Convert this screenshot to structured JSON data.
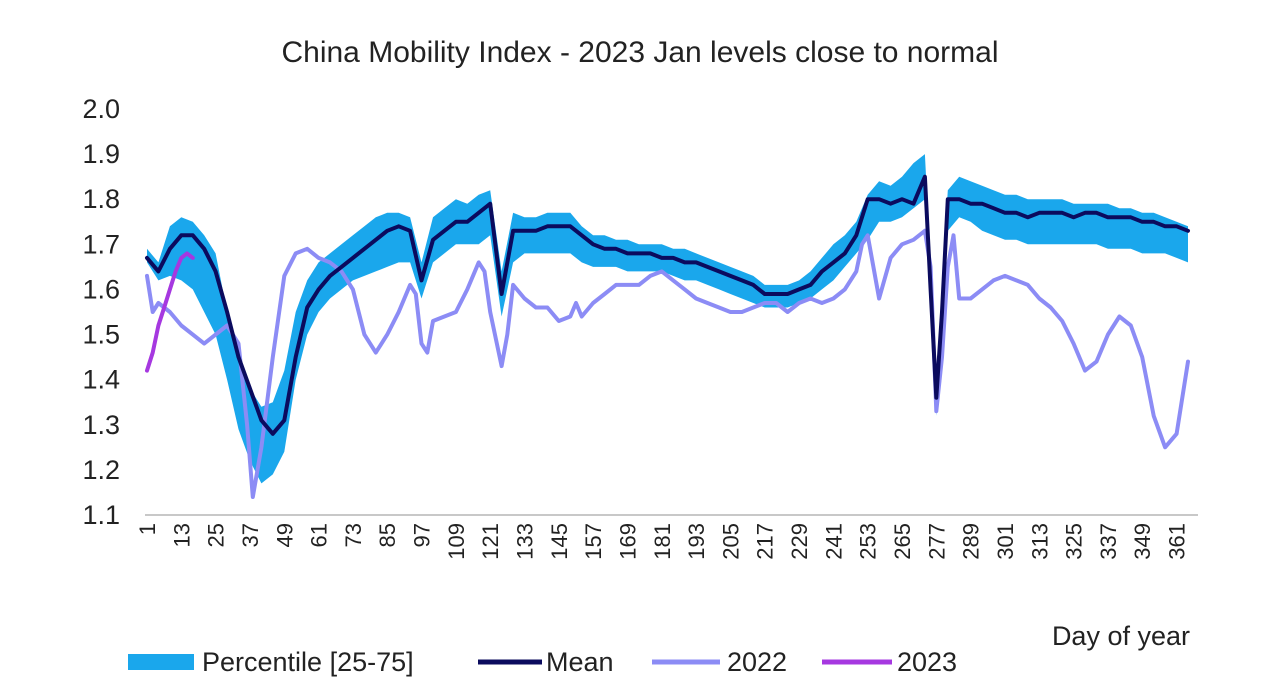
{
  "chart_data": {
    "type": "line",
    "title": "China  Mobility Index  - 2023 Jan  levels  close to normal",
    "xlabel": "Day of year",
    "ylabel": "",
    "xlim": [
      1,
      365
    ],
    "ylim": [
      1.1,
      2.0
    ],
    "y_ticks": [
      "2.0",
      "1.9",
      "1.8",
      "1.7",
      "1.6",
      "1.5",
      "1.4",
      "1.3",
      "1.2",
      "1.1"
    ],
    "x_ticks": [
      "1",
      "13",
      "25",
      "37",
      "49",
      "61",
      "73",
      "85",
      "97",
      "109",
      "121",
      "133",
      "145",
      "157",
      "169",
      "181",
      "193",
      "205",
      "217",
      "229",
      "241",
      "253",
      "265",
      "277",
      "289",
      "301",
      "313",
      "325",
      "337",
      "349",
      "361"
    ],
    "grid": false,
    "legend_position": "bottom",
    "band": {
      "name": "Percentile [25-75]",
      "color": "#1AA7EC",
      "x": [
        1,
        5,
        9,
        13,
        17,
        21,
        25,
        29,
        33,
        37,
        41,
        45,
        49,
        53,
        57,
        61,
        65,
        69,
        73,
        77,
        81,
        85,
        89,
        93,
        97,
        101,
        105,
        109,
        113,
        117,
        121,
        125,
        129,
        133,
        137,
        141,
        145,
        149,
        153,
        157,
        161,
        165,
        169,
        173,
        177,
        181,
        185,
        189,
        193,
        197,
        201,
        205,
        209,
        213,
        217,
        221,
        225,
        229,
        233,
        237,
        241,
        245,
        249,
        253,
        257,
        261,
        265,
        269,
        273,
        277,
        281,
        285,
        289,
        293,
        297,
        301,
        305,
        309,
        313,
        317,
        321,
        325,
        329,
        333,
        337,
        341,
        345,
        349,
        353,
        357,
        361,
        365
      ],
      "upper": [
        1.69,
        1.66,
        1.74,
        1.76,
        1.75,
        1.72,
        1.68,
        1.55,
        1.45,
        1.38,
        1.34,
        1.35,
        1.42,
        1.55,
        1.62,
        1.66,
        1.68,
        1.7,
        1.72,
        1.74,
        1.76,
        1.77,
        1.77,
        1.76,
        1.66,
        1.76,
        1.78,
        1.8,
        1.79,
        1.81,
        1.82,
        1.64,
        1.77,
        1.76,
        1.76,
        1.77,
        1.77,
        1.77,
        1.74,
        1.72,
        1.72,
        1.71,
        1.71,
        1.7,
        1.7,
        1.7,
        1.69,
        1.69,
        1.68,
        1.67,
        1.66,
        1.65,
        1.64,
        1.63,
        1.61,
        1.61,
        1.61,
        1.62,
        1.64,
        1.67,
        1.7,
        1.72,
        1.75,
        1.81,
        1.84,
        1.83,
        1.85,
        1.88,
        1.9,
        1.4,
        1.82,
        1.85,
        1.84,
        1.83,
        1.82,
        1.81,
        1.81,
        1.8,
        1.8,
        1.8,
        1.8,
        1.79,
        1.79,
        1.79,
        1.79,
        1.78,
        1.78,
        1.77,
        1.77,
        1.76,
        1.75,
        1.74
      ],
      "lower": [
        1.66,
        1.62,
        1.63,
        1.62,
        1.6,
        1.55,
        1.5,
        1.4,
        1.29,
        1.22,
        1.17,
        1.19,
        1.24,
        1.4,
        1.5,
        1.55,
        1.58,
        1.6,
        1.62,
        1.63,
        1.64,
        1.65,
        1.66,
        1.66,
        1.58,
        1.66,
        1.68,
        1.7,
        1.7,
        1.7,
        1.72,
        1.54,
        1.66,
        1.68,
        1.68,
        1.68,
        1.68,
        1.68,
        1.66,
        1.65,
        1.65,
        1.65,
        1.64,
        1.64,
        1.64,
        1.64,
        1.63,
        1.62,
        1.62,
        1.61,
        1.6,
        1.59,
        1.58,
        1.57,
        1.56,
        1.56,
        1.56,
        1.57,
        1.58,
        1.6,
        1.62,
        1.65,
        1.68,
        1.71,
        1.75,
        1.75,
        1.76,
        1.78,
        1.8,
        1.32,
        1.73,
        1.76,
        1.75,
        1.73,
        1.72,
        1.71,
        1.71,
        1.7,
        1.7,
        1.7,
        1.7,
        1.7,
        1.7,
        1.7,
        1.69,
        1.69,
        1.69,
        1.68,
        1.68,
        1.68,
        1.67,
        1.66
      ]
    },
    "series": [
      {
        "name": "Mean",
        "color": "#0B0B5E",
        "x": [
          1,
          5,
          9,
          13,
          17,
          21,
          25,
          29,
          33,
          37,
          41,
          45,
          49,
          53,
          57,
          61,
          65,
          69,
          73,
          77,
          81,
          85,
          89,
          93,
          97,
          101,
          105,
          109,
          113,
          117,
          121,
          125,
          129,
          133,
          137,
          141,
          145,
          149,
          153,
          157,
          161,
          165,
          169,
          173,
          177,
          181,
          185,
          189,
          193,
          197,
          201,
          205,
          209,
          213,
          217,
          221,
          225,
          229,
          233,
          237,
          241,
          245,
          249,
          253,
          257,
          261,
          265,
          269,
          273,
          275,
          277,
          279,
          281,
          285,
          289,
          293,
          297,
          301,
          305,
          309,
          313,
          317,
          321,
          325,
          329,
          333,
          337,
          341,
          345,
          349,
          353,
          357,
          361,
          365
        ],
        "values": [
          1.67,
          1.64,
          1.69,
          1.72,
          1.72,
          1.69,
          1.64,
          1.55,
          1.45,
          1.38,
          1.31,
          1.28,
          1.31,
          1.45,
          1.56,
          1.6,
          1.63,
          1.65,
          1.67,
          1.69,
          1.71,
          1.73,
          1.74,
          1.73,
          1.62,
          1.71,
          1.73,
          1.75,
          1.75,
          1.77,
          1.79,
          1.59,
          1.73,
          1.73,
          1.73,
          1.74,
          1.74,
          1.74,
          1.72,
          1.7,
          1.69,
          1.69,
          1.68,
          1.68,
          1.68,
          1.67,
          1.67,
          1.66,
          1.66,
          1.65,
          1.64,
          1.63,
          1.62,
          1.61,
          1.59,
          1.59,
          1.59,
          1.6,
          1.61,
          1.64,
          1.66,
          1.68,
          1.72,
          1.8,
          1.8,
          1.79,
          1.8,
          1.79,
          1.85,
          1.6,
          1.36,
          1.55,
          1.8,
          1.8,
          1.79,
          1.79,
          1.78,
          1.77,
          1.77,
          1.76,
          1.77,
          1.77,
          1.77,
          1.76,
          1.77,
          1.77,
          1.76,
          1.76,
          1.76,
          1.75,
          1.75,
          1.74,
          1.74,
          1.73
        ]
      },
      {
        "name": "2022",
        "color": "#8C8CF5",
        "x": [
          1,
          3,
          5,
          9,
          13,
          17,
          21,
          25,
          29,
          33,
          36,
          38,
          41,
          45,
          49,
          53,
          57,
          61,
          65,
          69,
          73,
          77,
          81,
          85,
          89,
          93,
          95,
          97,
          99,
          101,
          105,
          109,
          113,
          117,
          119,
          121,
          125,
          127,
          129,
          133,
          137,
          141,
          145,
          149,
          151,
          153,
          157,
          161,
          165,
          169,
          173,
          177,
          181,
          185,
          189,
          193,
          197,
          201,
          205,
          209,
          213,
          217,
          221,
          225,
          229,
          233,
          237,
          241,
          245,
          249,
          251,
          253,
          255,
          257,
          261,
          265,
          269,
          273,
          275,
          277,
          279,
          281,
          283,
          285,
          289,
          293,
          297,
          301,
          305,
          309,
          313,
          317,
          321,
          325,
          329,
          333,
          337,
          341,
          345,
          349,
          353,
          357,
          361,
          365
        ],
        "values": [
          1.63,
          1.55,
          1.57,
          1.55,
          1.52,
          1.5,
          1.48,
          1.5,
          1.52,
          1.48,
          1.3,
          1.14,
          1.25,
          1.45,
          1.63,
          1.68,
          1.69,
          1.67,
          1.66,
          1.64,
          1.6,
          1.5,
          1.46,
          1.5,
          1.55,
          1.61,
          1.59,
          1.48,
          1.46,
          1.53,
          1.54,
          1.55,
          1.6,
          1.66,
          1.64,
          1.55,
          1.43,
          1.5,
          1.61,
          1.58,
          1.56,
          1.56,
          1.53,
          1.54,
          1.57,
          1.54,
          1.57,
          1.59,
          1.61,
          1.61,
          1.61,
          1.63,
          1.64,
          1.62,
          1.6,
          1.58,
          1.57,
          1.56,
          1.55,
          1.55,
          1.56,
          1.57,
          1.57,
          1.55,
          1.57,
          1.58,
          1.57,
          1.58,
          1.6,
          1.64,
          1.7,
          1.72,
          1.65,
          1.58,
          1.67,
          1.7,
          1.71,
          1.73,
          1.65,
          1.33,
          1.45,
          1.65,
          1.72,
          1.58,
          1.58,
          1.6,
          1.62,
          1.63,
          1.62,
          1.61,
          1.58,
          1.56,
          1.53,
          1.48,
          1.42,
          1.44,
          1.5,
          1.54,
          1.52,
          1.45,
          1.32,
          1.25,
          1.28,
          1.44
        ]
      },
      {
        "name": "2023",
        "color": "#A638E0",
        "x": [
          1,
          3,
          5,
          7,
          9,
          11,
          13,
          15,
          17
        ],
        "values": [
          1.42,
          1.46,
          1.52,
          1.56,
          1.6,
          1.64,
          1.67,
          1.68,
          1.67
        ]
      }
    ]
  }
}
